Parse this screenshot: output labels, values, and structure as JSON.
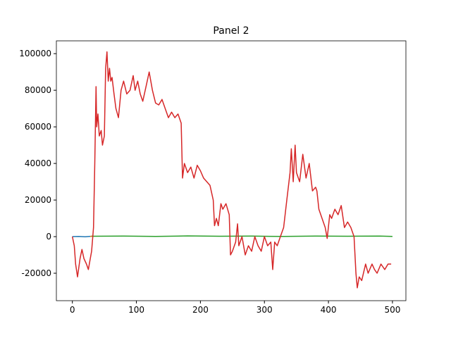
{
  "chart_data": {
    "type": "line",
    "title": "Panel 2",
    "xlim": [
      -25,
      521
    ],
    "ylim": [
      -35000,
      107000
    ],
    "xticks": [
      0,
      100,
      200,
      300,
      400,
      500
    ],
    "yticks": [
      -20000,
      0,
      20000,
      40000,
      60000,
      80000,
      100000
    ],
    "series": [
      {
        "color": "#1f77b4",
        "x": [
          0,
          10,
          20,
          30
        ],
        "values": [
          0,
          100,
          -100,
          200
        ]
      },
      {
        "color": "#ff7f0e",
        "x": [
          28,
          30,
          33
        ],
        "values": [
          0,
          300,
          100
        ]
      },
      {
        "color": "#2ca02c",
        "x": [
          30,
          80,
          130,
          180,
          230,
          280,
          330,
          380,
          430,
          480,
          500
        ],
        "values": [
          200,
          300,
          100,
          400,
          200,
          300,
          100,
          300,
          200,
          300,
          100
        ]
      },
      {
        "color": "#d62728",
        "x": [
          0,
          3,
          5,
          8,
          12,
          15,
          18,
          22,
          25,
          28,
          30,
          33,
          35,
          37,
          38,
          40,
          42,
          45,
          47,
          50,
          52,
          54,
          56,
          58,
          60,
          62,
          65,
          68,
          72,
          76,
          80,
          85,
          90,
          95,
          98,
          102,
          106,
          110,
          115,
          120,
          125,
          130,
          135,
          140,
          145,
          150,
          155,
          160,
          165,
          170,
          172,
          175,
          180,
          185,
          190,
          195,
          200,
          205,
          210,
          215,
          220,
          222,
          225,
          228,
          232,
          235,
          240,
          245,
          247,
          250,
          255,
          258,
          260,
          265,
          270,
          275,
          280,
          285,
          290,
          295,
          300,
          305,
          310,
          313,
          316,
          320,
          325,
          330,
          335,
          340,
          342,
          345,
          348,
          350,
          355,
          360,
          365,
          370,
          375,
          380,
          382,
          385,
          390,
          395,
          398,
          402,
          405,
          410,
          415,
          420,
          425,
          430,
          435,
          440,
          443,
          445,
          448,
          452,
          458,
          462,
          468,
          472,
          476,
          482,
          488,
          493,
          498
        ],
        "values": [
          0,
          -5000,
          -15000,
          -22000,
          -12000,
          -7000,
          -12000,
          -15000,
          -18000,
          -12000,
          -8000,
          5000,
          40000,
          82000,
          60000,
          67000,
          55000,
          58000,
          50000,
          55000,
          92000,
          101000,
          85000,
          92000,
          85000,
          87000,
          78000,
          70000,
          65000,
          80000,
          85000,
          78000,
          80000,
          88000,
          80000,
          85000,
          78000,
          74000,
          82000,
          90000,
          80000,
          73000,
          72000,
          75000,
          70000,
          65000,
          68000,
          65000,
          67000,
          62000,
          32000,
          40000,
          35000,
          38000,
          32000,
          39000,
          36000,
          32000,
          30000,
          28000,
          20000,
          6000,
          10000,
          6000,
          18000,
          15000,
          18000,
          12000,
          -10000,
          -8000,
          -3000,
          7000,
          -5000,
          0,
          -10000,
          -5000,
          -8000,
          0,
          -5000,
          -8000,
          0,
          -5000,
          -3000,
          -18000,
          -3000,
          -5000,
          0,
          5000,
          20000,
          35000,
          48000,
          30000,
          50000,
          35000,
          30000,
          45000,
          32000,
          40000,
          25000,
          27000,
          25000,
          15000,
          10000,
          5000,
          -1000,
          12000,
          10000,
          15000,
          12000,
          17000,
          5000,
          8000,
          5000,
          0,
          -20000,
          -28000,
          -22000,
          -24000,
          -15000,
          -20000,
          -15000,
          -18000,
          -20000,
          -15000,
          -18000,
          -15000,
          -15000
        ]
      }
    ]
  }
}
